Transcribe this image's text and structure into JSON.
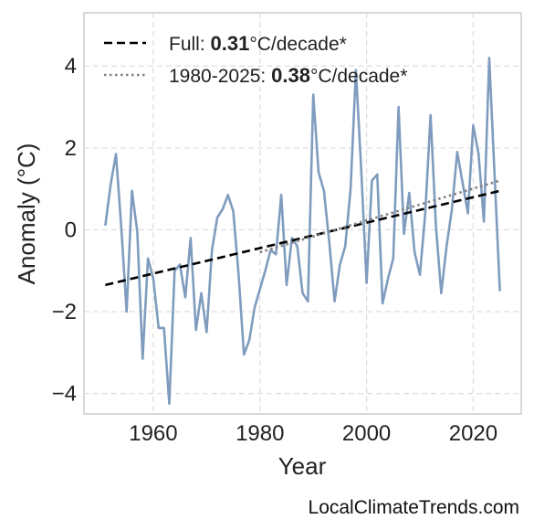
{
  "chart_data": {
    "type": "line",
    "xlabel": "Year",
    "ylabel": "Anomaly (°C)",
    "xlim": [
      1947,
      2029
    ],
    "ylim": [
      -4.5,
      5.3
    ],
    "xticks": [
      1960,
      1980,
      2000,
      2020
    ],
    "yticks": [
      -4,
      -2,
      0,
      2,
      4
    ],
    "grid": true,
    "legend_position": "top-left",
    "colors": {
      "series": "#7f9cbf",
      "full_trend": "#000000",
      "recent_trend": "#808080"
    },
    "legend": [
      {
        "prefix": "Full: ",
        "value": "0.31",
        "suffix": "°C/decade*"
      },
      {
        "prefix": "1980-2025: ",
        "value": "0.38",
        "suffix": "°C/decade*"
      }
    ],
    "series": [
      {
        "x": [
          1951,
          1952,
          1953,
          1954,
          1955,
          1956,
          1957,
          1958,
          1959,
          1960,
          1961,
          1962,
          1963,
          1964,
          1965,
          1966,
          1967,
          1968,
          1969,
          1970,
          1971,
          1972,
          1973,
          1974,
          1975,
          1976,
          1977,
          1978,
          1979,
          1980,
          1981,
          1982,
          1983,
          1984,
          1985,
          1986,
          1987,
          1988,
          1989,
          1990,
          1991,
          1992,
          1993,
          1994,
          1995,
          1996,
          1997,
          1998,
          1999,
          2000,
          2001,
          2002,
          2003,
          2004,
          2005,
          2006,
          2007,
          2008,
          2009,
          2010,
          2011,
          2012,
          2013,
          2014,
          2015,
          2016,
          2017,
          2018,
          2019,
          2020,
          2021,
          2022,
          2023,
          2024,
          2025
        ],
        "y": [
          0.1,
          1.1,
          1.85,
          0.05,
          -2.0,
          0.95,
          -0.05,
          -3.15,
          -0.7,
          -1.2,
          -2.4,
          -2.4,
          -4.25,
          -1.0,
          -0.85,
          -1.65,
          -0.2,
          -2.45,
          -1.55,
          -2.5,
          -0.5,
          0.3,
          0.5,
          0.85,
          0.45,
          -1.1,
          -3.05,
          -2.7,
          -1.9,
          -1.45,
          -1.0,
          -0.5,
          -0.6,
          0.85,
          -1.35,
          -0.2,
          -0.4,
          -1.55,
          -1.75,
          3.3,
          1.4,
          0.95,
          -0.3,
          -1.75,
          -0.85,
          -0.4,
          1.0,
          3.9,
          1.45,
          -1.3,
          1.2,
          1.35,
          -1.8,
          -1.2,
          -0.7,
          3.0,
          -0.1,
          0.9,
          -0.55,
          -1.1,
          0.4,
          2.8,
          0.1,
          -1.55,
          -0.4,
          0.5,
          1.9,
          1.15,
          0.4,
          2.55,
          1.85,
          0.2,
          4.2,
          1.35,
          -1.5
        ]
      }
    ],
    "trends": {
      "full": {
        "x": [
          1951,
          2025
        ],
        "y": [
          -1.35,
          0.95
        ]
      },
      "recent": {
        "x": [
          1980,
          2025
        ],
        "y": [
          -0.55,
          1.2
        ]
      }
    }
  },
  "watermark": "LocalClimateTrends.com"
}
